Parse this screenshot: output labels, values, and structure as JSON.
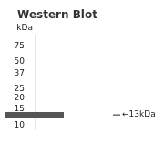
{
  "chart_data": {
    "type": "line",
    "title": "Western Blot",
    "y_label": "kDa",
    "categories": [
      null
    ],
    "values": [
      13
    ],
    "color": "#555555",
    "marker": "line",
    "log": "y",
    "ylim": [
      9,
      100
    ],
    "yticks": [
      10,
      15,
      20,
      25,
      37,
      50,
      75
    ],
    "grid": false,
    "tick_labels": "y",
    "annotations": [
      {
        "text": "←13kDa",
        "y": 13
      }
    ]
  }
}
